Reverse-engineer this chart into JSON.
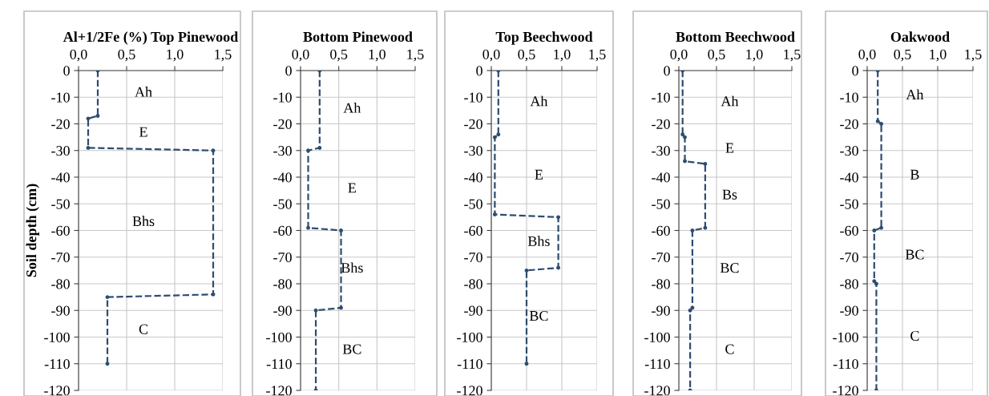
{
  "chart_data": [
    {
      "type": "line",
      "title": "Al+1/2Fe (%) Top Pinewood",
      "ylabel": "Soil depth (cm)",
      "color": "#2e4d70",
      "marker": "circle",
      "line_style": "dashed",
      "grid": true,
      "legend": false,
      "x": [
        0.2,
        0.2,
        0.1,
        0.1,
        1.4,
        1.4,
        0.3,
        0.3
      ],
      "values": [
        0,
        -17,
        -18,
        -29,
        -30,
        -84,
        -85,
        -110
      ],
      "xlim": [
        0,
        1.5
      ],
      "xticks": [
        {
          "value": 0,
          "label": "0,0"
        },
        {
          "value": 0.5,
          "label": "0,5"
        },
        {
          "value": 1,
          "label": "1,0"
        },
        {
          "value": 1.5,
          "label": "1,5"
        }
      ],
      "ylim": [
        -120,
        0
      ],
      "yticks": [
        {
          "value": 0,
          "label": "0"
        },
        {
          "value": -10,
          "label": "-10"
        },
        {
          "value": -20,
          "label": "-20"
        },
        {
          "value": -30,
          "label": "-30"
        },
        {
          "value": -40,
          "label": "-40"
        },
        {
          "value": -50,
          "label": "-50"
        },
        {
          "value": -60,
          "label": "-60"
        },
        {
          "value": -70,
          "label": "-70"
        },
        {
          "value": -80,
          "label": "-80"
        },
        {
          "value": -90,
          "label": "-90"
        },
        {
          "value": -100,
          "label": "-100"
        },
        {
          "value": -110,
          "label": "-110"
        },
        {
          "value": -120,
          "label": "-120"
        }
      ],
      "annotations": [
        "Ah",
        "E",
        "Bhs",
        "C"
      ]
    },
    {
      "type": "line",
      "title": "Bottom Pinewood",
      "color": "#2e4d70",
      "marker": "circle",
      "line_style": "dashed",
      "grid": true,
      "legend": false,
      "x": [
        0.25,
        0.25,
        0.1,
        0.1,
        0.53,
        0.53,
        0.2,
        0.2
      ],
      "values": [
        0,
        -29,
        -30,
        -59,
        -60,
        -89,
        -90,
        -120
      ],
      "xlim": [
        0,
        1.5
      ],
      "xticks": [
        {
          "value": 0,
          "label": "0,0"
        },
        {
          "value": 0.5,
          "label": "0,5"
        },
        {
          "value": 1,
          "label": "1,0"
        },
        {
          "value": 1.5,
          "label": "1,5"
        }
      ],
      "ylim": [
        -120,
        0
      ],
      "yticks": [
        {
          "value": 0,
          "label": "0"
        },
        {
          "value": -10,
          "label": "-10"
        },
        {
          "value": -20,
          "label": "-20"
        },
        {
          "value": -30,
          "label": "-30"
        },
        {
          "value": -40,
          "label": "-40"
        },
        {
          "value": -50,
          "label": "-50"
        },
        {
          "value": -60,
          "label": "-60"
        },
        {
          "value": -70,
          "label": "-70"
        },
        {
          "value": -80,
          "label": "-80"
        },
        {
          "value": -90,
          "label": "-90"
        },
        {
          "value": -100,
          "label": "-100"
        },
        {
          "value": -110,
          "label": "-110"
        },
        {
          "value": -120,
          "label": "-120"
        }
      ],
      "annotations": [
        "Ah",
        "E",
        "Bhs",
        "BC"
      ]
    },
    {
      "type": "line",
      "title": "Top Beechwood",
      "color": "#2e4d70",
      "marker": "circle",
      "line_style": "dashed",
      "grid": true,
      "legend": false,
      "x": [
        0.1,
        0.1,
        0.05,
        0.05,
        0.95,
        0.95,
        0.5,
        0.5
      ],
      "values": [
        0,
        -24,
        -25,
        -54,
        -55,
        -74,
        -75,
        -110
      ],
      "xlim": [
        0,
        1.5
      ],
      "xticks": [
        {
          "value": 0,
          "label": "0,0"
        },
        {
          "value": 0.5,
          "label": "0,5"
        },
        {
          "value": 1,
          "label": "1,0"
        },
        {
          "value": 1.5,
          "label": "1,5"
        }
      ],
      "ylim": [
        -120,
        0
      ],
      "yticks": [
        {
          "value": 0,
          "label": "0"
        },
        {
          "value": -10,
          "label": "-10"
        },
        {
          "value": -20,
          "label": "-20"
        },
        {
          "value": -30,
          "label": "-30"
        },
        {
          "value": -40,
          "label": "-40"
        },
        {
          "value": -50,
          "label": "-50"
        },
        {
          "value": -60,
          "label": "-60"
        },
        {
          "value": -70,
          "label": "-70"
        },
        {
          "value": -80,
          "label": "-80"
        },
        {
          "value": -90,
          "label": "-90"
        },
        {
          "value": -100,
          "label": "-100"
        },
        {
          "value": -110,
          "label": "-110"
        },
        {
          "value": -120,
          "label": "-120"
        }
      ],
      "annotations": [
        "Ah",
        "E",
        "Bhs",
        "BC"
      ]
    },
    {
      "type": "line",
      "title": "Bottom Beechwood",
      "color": "#2e4d70",
      "marker": "circle",
      "line_style": "dashed",
      "grid": true,
      "legend": false,
      "x": [
        0.05,
        0.05,
        0.08,
        0.08,
        0.35,
        0.35,
        0.18,
        0.18,
        0.15,
        0.15
      ],
      "values": [
        0,
        -24,
        -25,
        -34,
        -35,
        -59,
        -60,
        -89,
        -90,
        -120
      ],
      "xlim": [
        0,
        1.5
      ],
      "xticks": [
        {
          "value": 0,
          "label": "0,0"
        },
        {
          "value": 0.5,
          "label": "0,5"
        },
        {
          "value": 1,
          "label": "1,0"
        },
        {
          "value": 1.5,
          "label": "1,5"
        }
      ],
      "ylim": [
        -120,
        0
      ],
      "yticks": [
        {
          "value": 0,
          "label": "0"
        },
        {
          "value": -10,
          "label": "-10"
        },
        {
          "value": -20,
          "label": "-20"
        },
        {
          "value": -30,
          "label": "-30"
        },
        {
          "value": -40,
          "label": "-40"
        },
        {
          "value": -50,
          "label": "-50"
        },
        {
          "value": -60,
          "label": "-60"
        },
        {
          "value": -70,
          "label": "-70"
        },
        {
          "value": -80,
          "label": "-80"
        },
        {
          "value": -90,
          "label": "-90"
        },
        {
          "value": -100,
          "label": "-100"
        },
        {
          "value": -110,
          "label": "-110"
        },
        {
          "value": -120,
          "label": "-120"
        }
      ],
      "annotations": [
        "Ah",
        "E",
        "Bs",
        "BC",
        "C"
      ]
    },
    {
      "type": "line",
      "title": "Oakwood",
      "color": "#2e4d70",
      "marker": "circle",
      "line_style": "dashed",
      "grid": true,
      "legend": false,
      "x": [
        0.15,
        0.15,
        0.2,
        0.2,
        0.1,
        0.1,
        0.13,
        0.13
      ],
      "values": [
        0,
        -19,
        -20,
        -59,
        -60,
        -79,
        -80,
        -120
      ],
      "xlim": [
        0,
        1.5
      ],
      "xticks": [
        {
          "value": 0,
          "label": "0,0"
        },
        {
          "value": 0.5,
          "label": "0,5"
        },
        {
          "value": 1,
          "label": "1,0"
        },
        {
          "value": 1.5,
          "label": "1,5"
        }
      ],
      "ylim": [
        -120,
        0
      ],
      "yticks": [
        {
          "value": 0,
          "label": "0"
        },
        {
          "value": -10,
          "label": "-10"
        },
        {
          "value": -20,
          "label": "-20"
        },
        {
          "value": -30,
          "label": "-30"
        },
        {
          "value": -40,
          "label": "-40"
        },
        {
          "value": -50,
          "label": "-50"
        },
        {
          "value": -60,
          "label": "-60"
        },
        {
          "value": -70,
          "label": "-70"
        },
        {
          "value": -80,
          "label": "-80"
        },
        {
          "value": -90,
          "label": "-90"
        },
        {
          "value": -100,
          "label": "-100"
        },
        {
          "value": -110,
          "label": "-110"
        },
        {
          "value": -120,
          "label": "-120"
        }
      ],
      "annotations": [
        "Ah",
        "B",
        "BC",
        "C"
      ]
    }
  ]
}
